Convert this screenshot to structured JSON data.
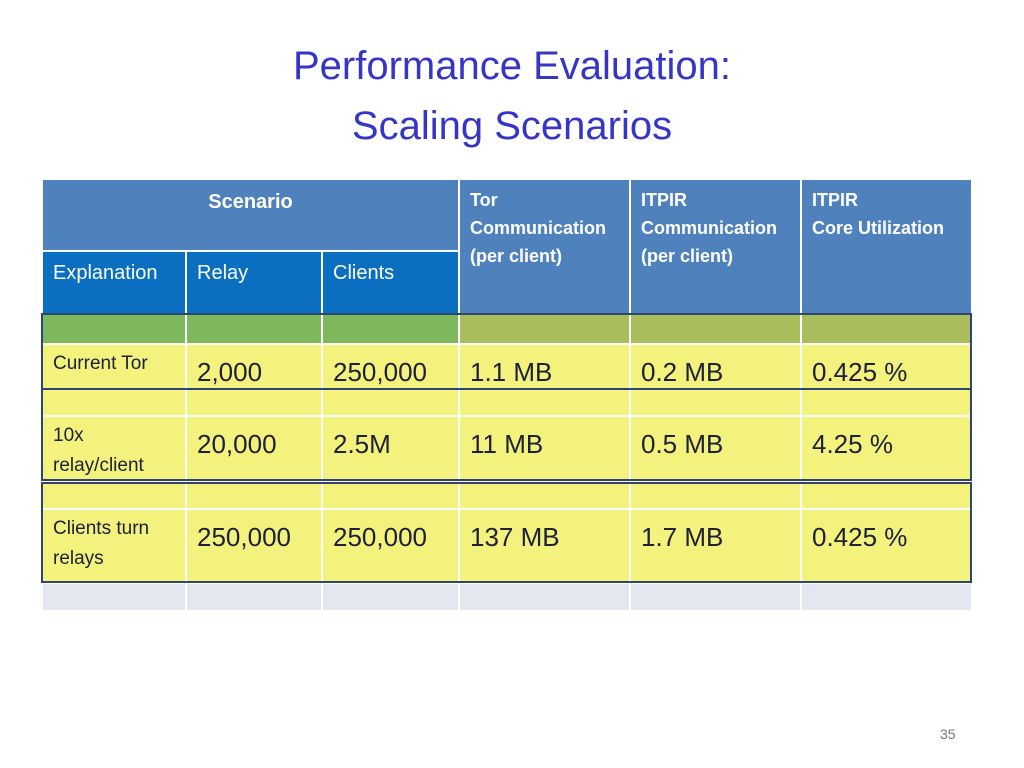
{
  "title": [
    "Performance Evaluation:",
    "Scaling Scenarios"
  ],
  "table": {
    "scenario": "Scenario",
    "subheaders": [
      "Explanation",
      "Relay",
      "Clients"
    ],
    "columns": [
      [
        "Tor",
        "Communication",
        "(per client)"
      ],
      [
        "ITPIR",
        "Communication",
        "(per client)"
      ],
      [
        "ITPIR",
        "Core Utilization"
      ]
    ],
    "rows": [
      [
        "Current Tor",
        "2,000",
        "250,000",
        "1.1 MB",
        "0.2 MB",
        "0.425 %"
      ],
      [
        "10x relay/client",
        "20,000",
        "2.5M",
        "11 MB",
        "0.5 MB",
        "4.25 %"
      ],
      [
        "Clients turn relays",
        "250,000",
        "250,000",
        "137 MB",
        "1.7 MB",
        "0.425 %"
      ]
    ]
  },
  "page_number": "35"
}
